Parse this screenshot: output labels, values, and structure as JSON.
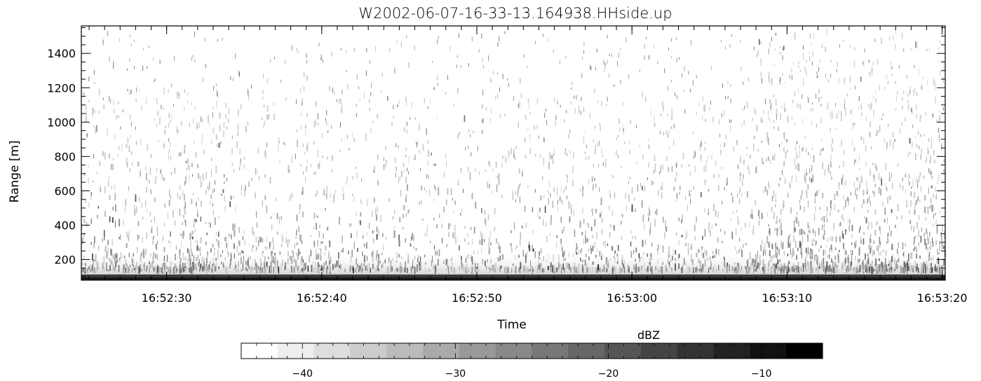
{
  "chart_data": {
    "type": "heatmap",
    "title": "W2002-06-07-16-33-13.164938.HHside.up",
    "xlabel": "Time",
    "ylabel": "Range [m]",
    "x_ticks": [
      "16:52:30",
      "16:52:40",
      "16:52:50",
      "16:53:00",
      "16:53:10",
      "16:53:20"
    ],
    "xlim": [
      "16:52:24.5",
      "16:53:20.2"
    ],
    "y_ticks": [
      200,
      400,
      600,
      800,
      1000,
      1200,
      1400
    ],
    "ylim": [
      80,
      1560
    ],
    "grid": false,
    "colormap": "grayscale",
    "colorbar": {
      "label": "dBZ",
      "ticks": [
        -40,
        -30,
        -20,
        -10
      ],
      "range": [
        -44,
        -6
      ],
      "colors": [
        "#ffffff",
        "#000000"
      ],
      "placement": "bottom"
    },
    "description": "Cloud radar reflectivity versus time and range; strongest echoes (dark) concentrated below 500 m, with a dense dark band at the lowest range gate and scattered weak echoes up to about 1500 m."
  }
}
